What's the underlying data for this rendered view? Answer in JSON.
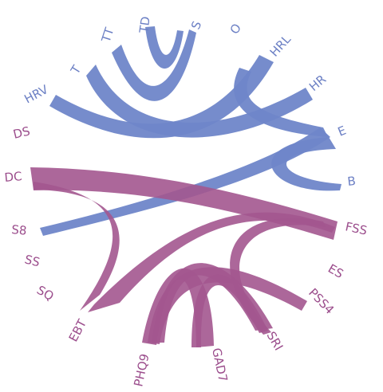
{
  "colors": {
    "blue": "#6f86c9",
    "purple": "#a3578f",
    "blue_text": "#6b7fc4",
    "purple_text": "#9b4d8c"
  },
  "labels": {
    "td": "TD",
    "s": "S",
    "o": "O",
    "tt": "TT",
    "hrl": "HRL",
    "t": "T",
    "hr": "HR",
    "hrv": "HRV",
    "e": "E",
    "ds": "DS",
    "dc": "DC",
    "b": "B",
    "s8": "S8",
    "fss": "FSS",
    "ss": "SS",
    "es": "ES",
    "sq": "SQ",
    "pss4": "PSS4",
    "ebt": "EBT",
    "sri": "SRI",
    "phq9": "PHQ9",
    "gad7": "GAD7"
  }
}
